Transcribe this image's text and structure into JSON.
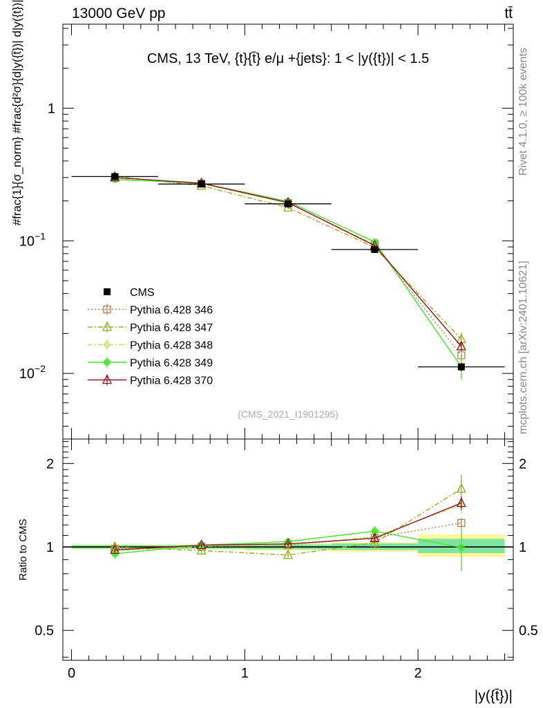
{
  "header": {
    "left": "13000 GeV pp",
    "right": "tt̄"
  },
  "side_labels": {
    "rivet": "Rivet 4.1.0, ≥ 100k events",
    "mcplots": "mcplots.cern.ch [arXiv:2401.10621]"
  },
  "colors": {
    "data": "#000000",
    "p346": "#b07e4f",
    "p347": "#9aab1e",
    "p348": "#b6e84a",
    "p349": "#44e62a",
    "p370": "#8f1326",
    "band_outer": "#fff799",
    "band_inner": "#7fe3a2"
  },
  "chart_data": [
    {
      "type": "line",
      "title": "CMS, 13 TeV, {t}{t̄} e/μ +{jets}: 1 < |y({t})| < 1.5",
      "ylabel": "#frac{1}{σ_norm} #frac{d²σ}{d|y({t̄})| d|y({t})|}",
      "watermark": "(CMS_2021_I1901295)",
      "yscale": "log",
      "xlim": [
        -0.05,
        2.55
      ],
      "ylim": [
        0.0032,
        4.3
      ],
      "y_ticks": [
        {
          "value": 0.01,
          "label": "10",
          "exp": "−2"
        },
        {
          "value": 0.1,
          "label": "10",
          "exp": "−1"
        },
        {
          "value": 1,
          "label": "1",
          "exp": ""
        }
      ],
      "x": [
        0.25,
        0.75,
        1.25,
        1.75,
        2.25
      ],
      "x_err": 0.25,
      "series": [
        {
          "key": "data",
          "name": "CMS",
          "values": [
            0.305,
            0.268,
            0.19,
            0.086,
            0.0112
          ],
          "errors": [
            0.012,
            0.009,
            0.007,
            0.005,
            0.0008
          ],
          "marker": "square",
          "line": "none"
        },
        {
          "key": "p346",
          "name": "Pythia 6.428 346",
          "values": [
            0.3,
            0.27,
            0.193,
            0.093,
            0.0137
          ],
          "errors": [
            0.006,
            0.005,
            0.004,
            0.003,
            0.0013
          ],
          "marker": "open-square",
          "line": "dotted"
        },
        {
          "key": "p347",
          "name": "Pythia 6.428 347",
          "values": [
            0.307,
            0.26,
            0.178,
            0.089,
            0.0181
          ],
          "errors": [
            0.007,
            0.006,
            0.004,
            0.003,
            0.0022
          ],
          "marker": "open-triangle",
          "line": "dashdot"
        },
        {
          "key": "p348",
          "name": "Pythia 6.428 348",
          "values": [
            0.294,
            0.27,
            0.193,
            0.094,
            0.0158
          ],
          "errors": [
            0.006,
            0.005,
            0.004,
            0.003,
            0.0017
          ],
          "marker": "open-diamond",
          "line": "dashdot"
        },
        {
          "key": "p349",
          "name": "Pythia 6.428 349",
          "values": [
            0.29,
            0.272,
            0.198,
            0.098,
            0.0112
          ],
          "errors": [
            0.007,
            0.006,
            0.005,
            0.004,
            0.0022
          ],
          "marker": "cross",
          "line": "solid"
        },
        {
          "key": "p370",
          "name": "Pythia 6.428 370",
          "values": [
            0.3,
            0.272,
            0.194,
            0.092,
            0.016
          ],
          "errors": [
            0.006,
            0.005,
            0.004,
            0.003,
            0.0013
          ],
          "marker": "open-triangle",
          "line": "solid"
        }
      ]
    },
    {
      "type": "line",
      "ylabel": "Ratio to CMS",
      "xlabel": "|y({t̄})|",
      "yscale": "log",
      "xlim": [
        -0.05,
        2.55
      ],
      "ylim": [
        0.39,
        2.45
      ],
      "y_ticks": [
        {
          "value": 0.5,
          "label": "0.5"
        },
        {
          "value": 1,
          "label": "1"
        },
        {
          "value": 2,
          "label": "2"
        }
      ],
      "x_ticks": [
        {
          "value": 0,
          "label": "0"
        },
        {
          "value": 1,
          "label": "1"
        },
        {
          "value": 2,
          "label": "2"
        }
      ],
      "x": [
        0.25,
        0.75,
        1.25,
        1.75,
        2.25
      ],
      "band_inner": [
        [
          0.985,
          1.015
        ],
        [
          0.985,
          1.015
        ],
        [
          0.98,
          1.02
        ],
        [
          0.975,
          1.03
        ],
        [
          0.95,
          1.07
        ]
      ],
      "band_outer": [
        [
          0.98,
          1.02
        ],
        [
          0.98,
          1.02
        ],
        [
          0.97,
          1.03
        ],
        [
          0.96,
          1.04
        ],
        [
          0.92,
          1.11
        ]
      ],
      "series": [
        {
          "key": "p346",
          "name": "Pythia 6.428 346",
          "values": [
            0.985,
            1.005,
            1.015,
            1.08,
            1.22
          ],
          "errors": [
            0.02,
            0.02,
            0.02,
            0.035,
            0.05
          ]
        },
        {
          "key": "p347",
          "name": "Pythia 6.428 347",
          "values": [
            1.0,
            0.97,
            0.935,
            1.035,
            1.62
          ],
          "errors": [
            0.03,
            0.03,
            0.03,
            0.04,
            0.2
          ]
        },
        {
          "key": "p348",
          "name": "Pythia 6.428 348",
          "values": [
            0.965,
            1.005,
            1.015,
            1.09,
            1.42
          ],
          "errors": [
            0.025,
            0.02,
            0.02,
            0.035,
            0.1
          ]
        },
        {
          "key": "p349",
          "name": "Pythia 6.428 349",
          "values": [
            0.945,
            1.015,
            1.045,
            1.14,
            0.995
          ],
          "errors": [
            0.04,
            0.025,
            0.03,
            0.05,
            0.18
          ]
        },
        {
          "key": "p370",
          "name": "Pythia 6.428 370",
          "values": [
            0.975,
            1.015,
            1.025,
            1.075,
            1.44
          ],
          "errors": [
            0.02,
            0.02,
            0.02,
            0.035,
            0.08
          ]
        }
      ]
    }
  ]
}
